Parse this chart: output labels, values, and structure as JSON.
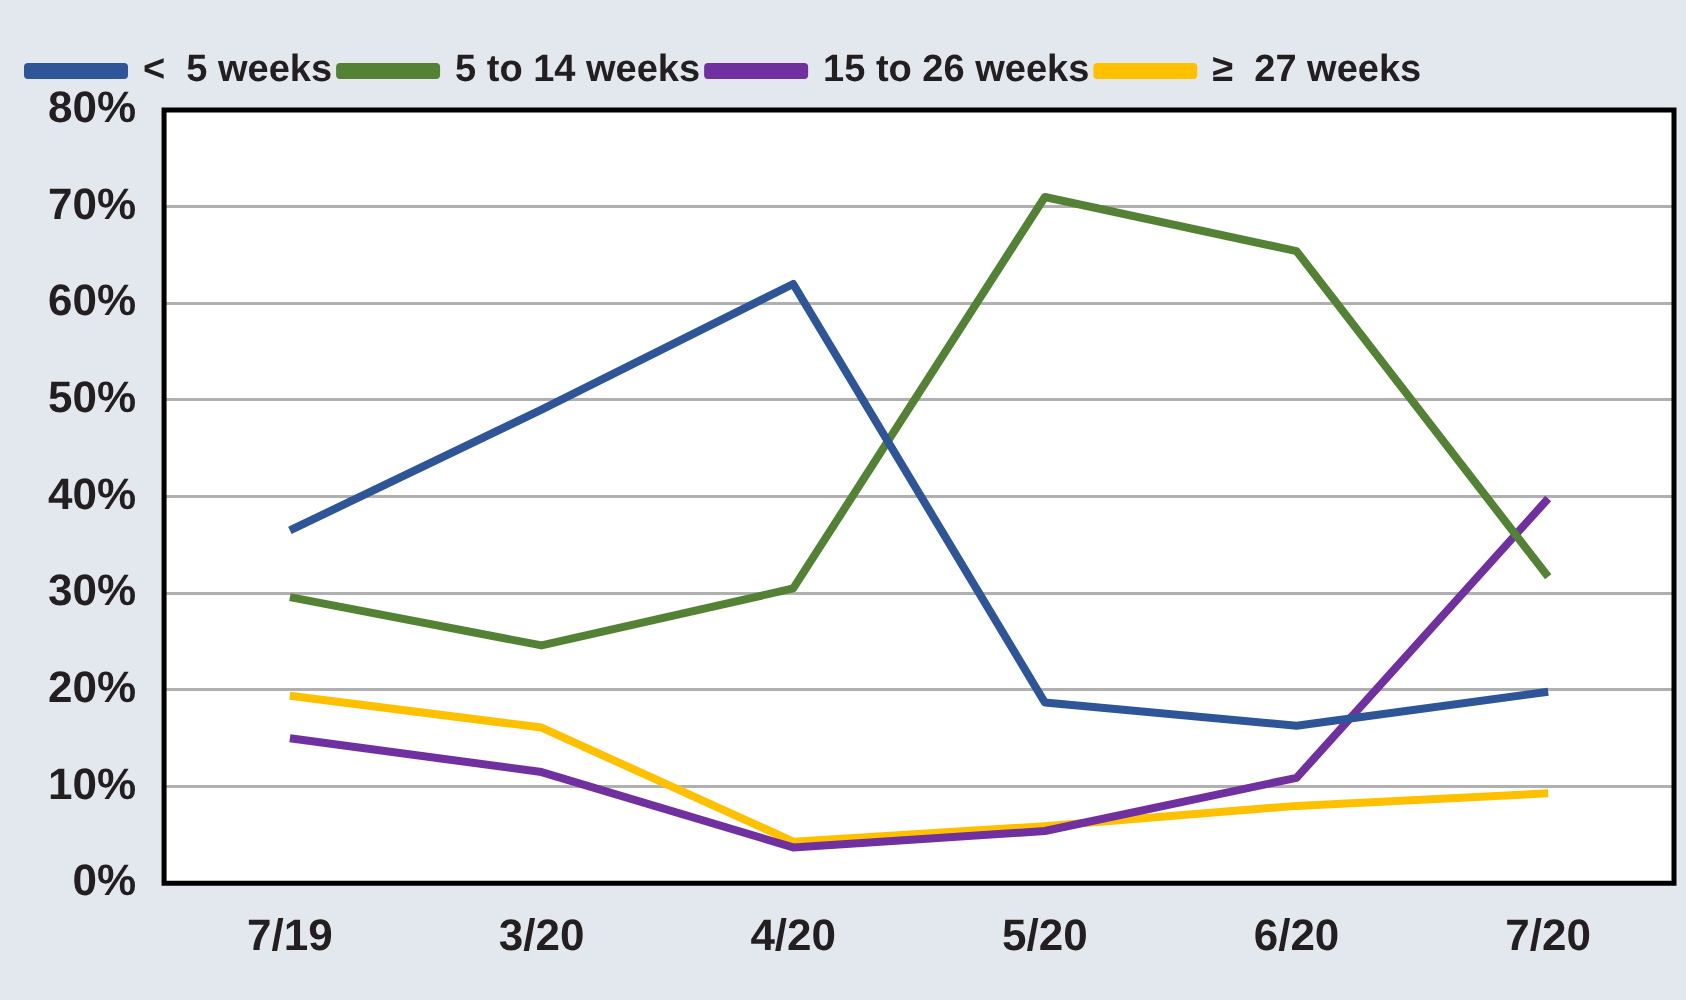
{
  "chart_data": {
    "type": "line",
    "categories": [
      "7/19",
      "3/20",
      "4/20",
      "5/20",
      "6/20",
      "7/20"
    ],
    "series": [
      {
        "name": "<  5 weeks",
        "color": "#2e5597",
        "values": [
          36.5,
          49,
          62,
          18.7,
          16.3,
          19.8
        ]
      },
      {
        "name": "5 to 14 weeks",
        "color": "#548235",
        "values": [
          29.6,
          24.6,
          30.5,
          71,
          65.4,
          31.7
        ]
      },
      {
        "name": "15 to 26 weeks",
        "color": "#7030a0",
        "values": [
          15,
          11.5,
          3.7,
          5.4,
          10.9,
          39.8
        ]
      },
      {
        "name": "≥  27 weeks",
        "color": "#ffc000",
        "values": [
          19.4,
          16.1,
          4.3,
          5.9,
          8,
          9.3
        ]
      }
    ],
    "ylim": [
      0,
      80
    ],
    "yticks": [
      {
        "value": 0,
        "label": "0%"
      },
      {
        "value": 10,
        "label": "10%"
      },
      {
        "value": 20,
        "label": "20%"
      },
      {
        "value": 30,
        "label": "30%"
      },
      {
        "value": 40,
        "label": "40%"
      },
      {
        "value": 50,
        "label": "50%"
      },
      {
        "value": 60,
        "label": "60%"
      },
      {
        "value": 70,
        "label": "70%"
      },
      {
        "value": 80,
        "label": "80%"
      }
    ],
    "grid": "y",
    "legend": "top left",
    "marker": "none",
    "line_style": "solid"
  }
}
